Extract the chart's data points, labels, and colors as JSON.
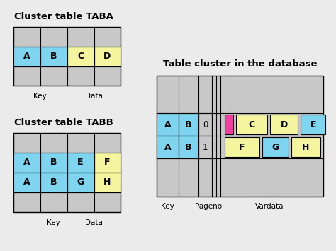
{
  "bg_color": "#ebebeb",
  "cyan": "#7fd4f0",
  "yellow": "#f5f5a0",
  "magenta": "#f040a0",
  "gray": "#c8c8c8",
  "black": "#000000",
  "title_taba": "Cluster table TABA",
  "title_tabb": "Cluster table TABB",
  "title_db": "Table cluster in the database"
}
